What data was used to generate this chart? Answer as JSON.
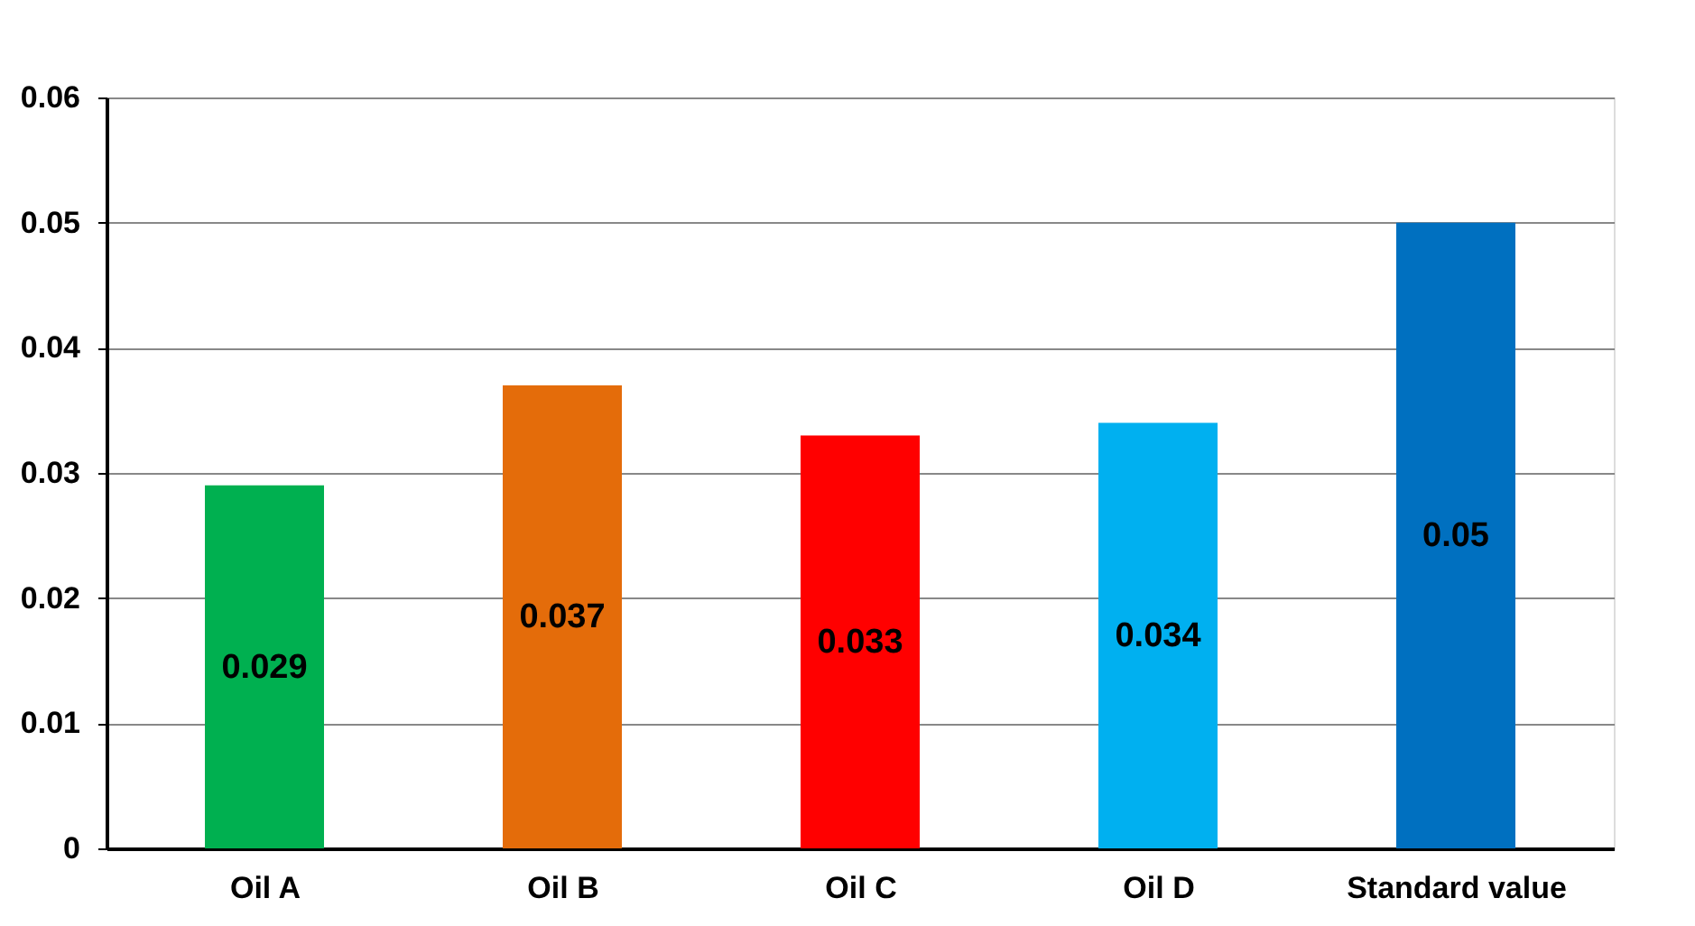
{
  "chart_data": {
    "type": "bar",
    "categories": [
      "Oil A",
      "Oil  B",
      "Oil  C",
      "Oil  D",
      "Standard value"
    ],
    "values": [
      0.029,
      0.037,
      0.033,
      0.034,
      0.05
    ],
    "colors": [
      "#00b050",
      "#e46c0a",
      "#ff0000",
      "#00b0f0",
      "#0070c0"
    ],
    "ylim": [
      0,
      0.06
    ],
    "yticks": [
      0,
      0.01,
      0.02,
      0.03,
      0.04,
      0.05,
      0.06
    ],
    "grid": "y",
    "data_labels": true
  }
}
